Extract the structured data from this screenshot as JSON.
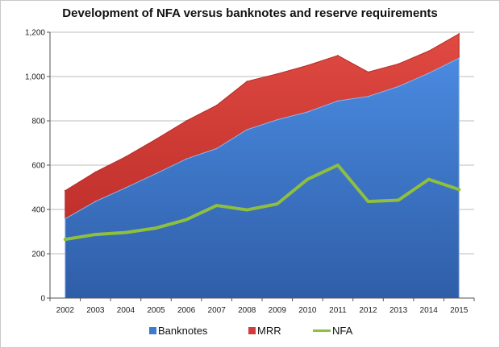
{
  "chart_data": {
    "type": "area",
    "title": "Development of NFA versus banknotes and reserve requirements",
    "xlabel": "",
    "ylabel": "",
    "categories": [
      "2002",
      "2003",
      "2004",
      "2005",
      "2006",
      "2007",
      "2008",
      "2009",
      "2010",
      "2011",
      "2012",
      "2013",
      "2014",
      "2015"
    ],
    "ylim": [
      0,
      1200
    ],
    "yticks": [
      0,
      200,
      400,
      600,
      800,
      1000,
      1200
    ],
    "ytick_labels": [
      "0",
      "200",
      "400",
      "600",
      "800",
      "1,000",
      "1,200"
    ],
    "grid": true,
    "legend_position": "bottom",
    "series": [
      {
        "name": "Banknotes",
        "kind": "stacked-area",
        "color": "#3f7ad1",
        "values": [
          358,
          436,
          498,
          562,
          628,
          675,
          760,
          805,
          840,
          890,
          910,
          955,
          1015,
          1083
        ]
      },
      {
        "name": "MRR",
        "kind": "stacked-area",
        "color": "#d13d3d",
        "values": [
          127,
          133,
          140,
          155,
          172,
          195,
          218,
          207,
          210,
          205,
          110,
          102,
          100,
          110
        ]
      },
      {
        "name": "NFA",
        "kind": "line",
        "color": "#8fbf3e",
        "values": [
          265,
          287,
          296,
          316,
          354,
          418,
          398,
          425,
          536,
          600,
          436,
          442,
          536,
          490
        ]
      }
    ]
  }
}
